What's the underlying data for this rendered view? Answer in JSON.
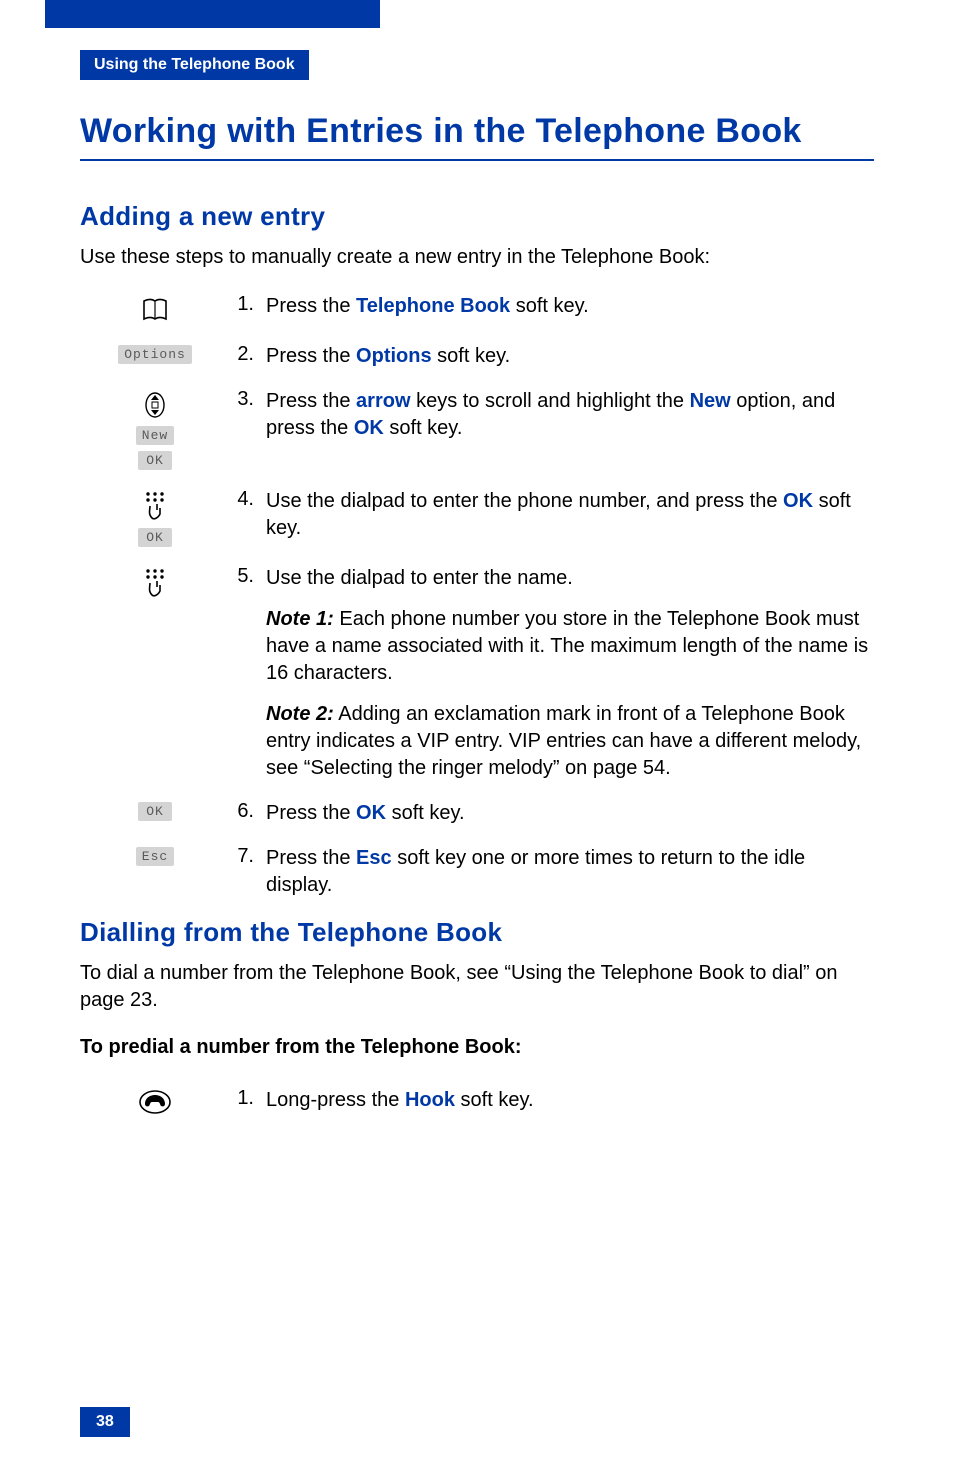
{
  "colors": {
    "brand_blue": "#0039a6",
    "lcd_bg": "#d4d4d4",
    "lcd_text": "#5a5a5a",
    "body_text": "#000000",
    "page_bg": "#ffffff"
  },
  "typography": {
    "heading_font": "Arial Black / Futura",
    "body_font": "Arial / Helvetica",
    "h1_size_pt": 26,
    "h2_size_pt": 20,
    "body_size_pt": 15
  },
  "header": {
    "section_tag": "Using the Telephone Book"
  },
  "title": "Working with Entries in the Telephone Book",
  "sec1": {
    "heading": "Adding a new entry",
    "intro": "Use these steps to manually create a new entry in the Telephone Book:",
    "steps": [
      {
        "num": "1.",
        "icons": [
          "book"
        ],
        "text_parts": [
          {
            "t": "Press the "
          },
          {
            "t": "Telephone Book",
            "bold_blue": true
          },
          {
            "t": " soft key."
          }
        ]
      },
      {
        "num": "2.",
        "icons": [
          "lcd:Options"
        ],
        "text_parts": [
          {
            "t": "Press the "
          },
          {
            "t": "Options",
            "bold_blue": true
          },
          {
            "t": " soft key."
          }
        ]
      },
      {
        "num": "3.",
        "icons": [
          "arrows",
          "lcd:New",
          "lcd:OK"
        ],
        "text_parts": [
          {
            "t": "Press the "
          },
          {
            "t": "arrow",
            "bold_blue": true
          },
          {
            "t": " keys to scroll and highlight the "
          },
          {
            "t": "New",
            "bold_blue": true
          },
          {
            "t": " option, and press the "
          },
          {
            "t": "OK",
            "bold_blue": true
          },
          {
            "t": " soft key."
          }
        ]
      },
      {
        "num": "4.",
        "icons": [
          "dialpad",
          "lcd:OK"
        ],
        "text_parts": [
          {
            "t": "Use the dialpad to enter the phone number, and press the "
          },
          {
            "t": "OK",
            "bold_blue": true
          },
          {
            "t": " soft key."
          }
        ]
      },
      {
        "num": "5.",
        "icons": [
          "dialpad"
        ],
        "text_parts": [
          {
            "t": "Use the dialpad to enter the name."
          }
        ],
        "notes": [
          {
            "label": "Note 1:",
            "text": " Each phone number you store in the Telephone Book must have a name associated with it. The maximum length of the name is 16 characters."
          },
          {
            "label": "Note 2:",
            "text": " Adding an exclamation mark in front of a Telephone Book entry indicates a VIP entry. VIP entries can have a different melody, see “Selecting the ringer melody” on page 54."
          }
        ]
      },
      {
        "num": "6.",
        "icons": [
          "lcd:OK"
        ],
        "text_parts": [
          {
            "t": "Press the "
          },
          {
            "t": "OK",
            "bold_blue": true
          },
          {
            "t": " soft key."
          }
        ]
      },
      {
        "num": "7.",
        "icons": [
          "lcd:Esc"
        ],
        "text_parts": [
          {
            "t": "Press the "
          },
          {
            "t": "Esc",
            "bold_blue": true
          },
          {
            "t": " soft key one or more times to return to the idle display."
          }
        ]
      }
    ]
  },
  "sec2": {
    "heading": "Dialling from the Telephone Book",
    "intro": "To dial a number from the Telephone Book, see “Using the Telephone Book to dial” on page 23.",
    "sub": "To predial a number from the Telephone Book:",
    "step": {
      "num": "1.",
      "icons": [
        "hook"
      ],
      "text_parts": [
        {
          "t": "Long-press the "
        },
        {
          "t": "Hook",
          "bold_blue": true
        },
        {
          "t": " soft key."
        }
      ]
    }
  },
  "page_number": "38"
}
